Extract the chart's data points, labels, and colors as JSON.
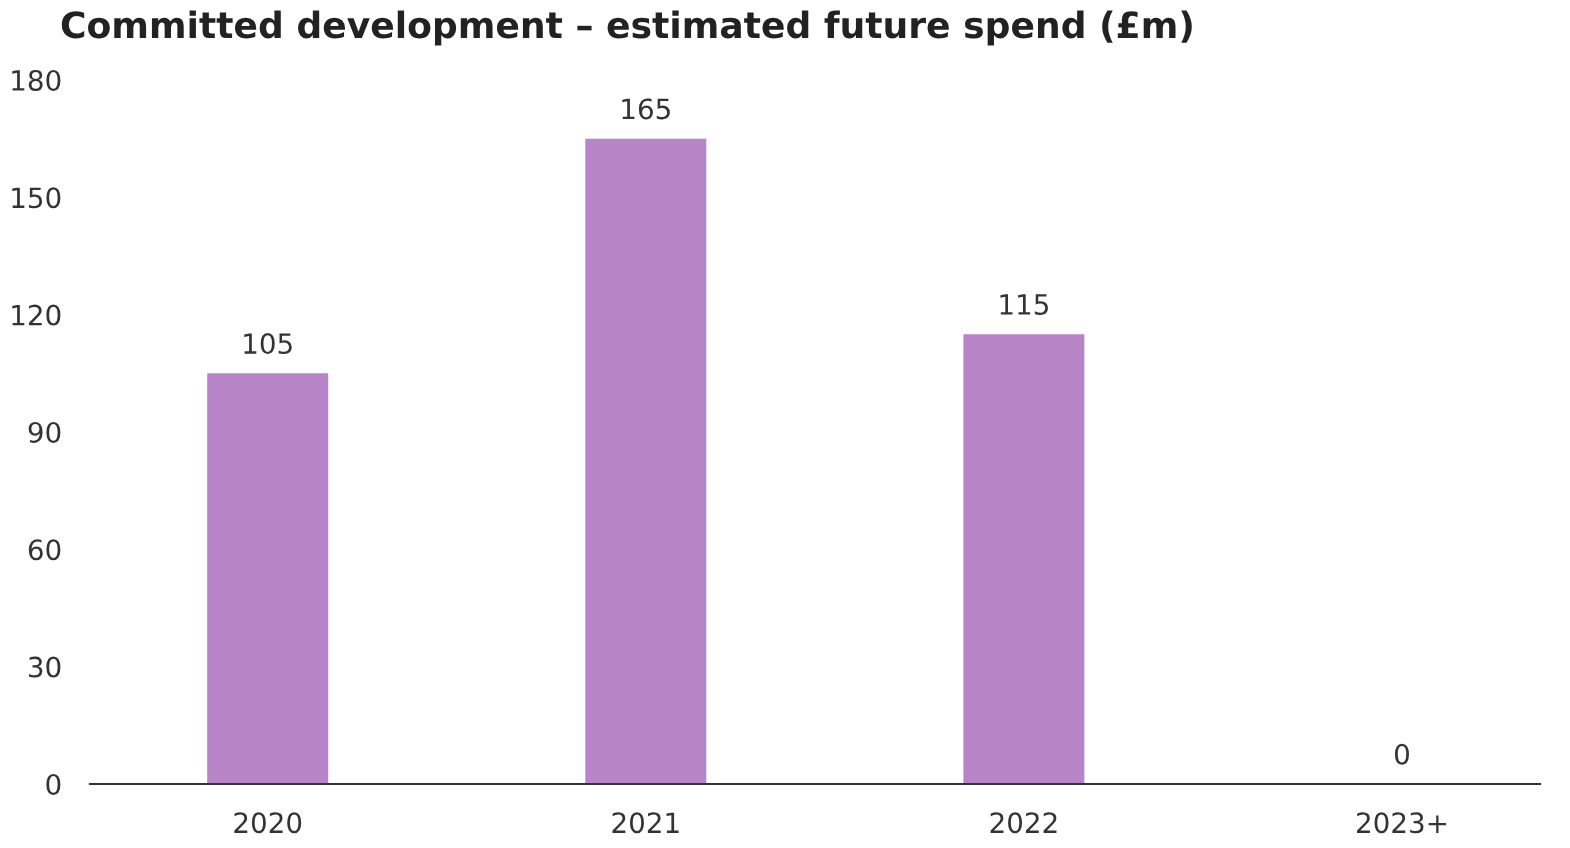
{
  "chart_data": {
    "type": "bar",
    "title": "Committed development – estimated future spend (£m)",
    "categories": [
      "2020",
      "2021",
      "2022",
      "2023+"
    ],
    "values": [
      105,
      165,
      115,
      0
    ],
    "color": "#b884c8",
    "ylim": [
      0,
      180
    ],
    "yticks": [
      0,
      30,
      60,
      90,
      120,
      150,
      180
    ],
    "grid": false,
    "data_labels": true
  }
}
